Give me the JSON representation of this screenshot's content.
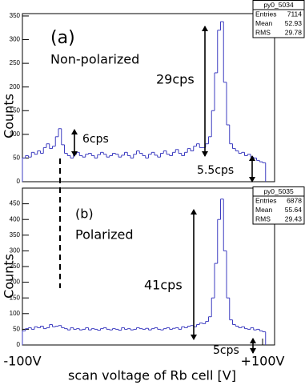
{
  "chart_data": [
    {
      "type": "histogram",
      "ylabel": "Counts",
      "color": "#3d3dc0",
      "annotations": [
        "(a)",
        "Non-polarized",
        "29cps",
        "6cps",
        "5.5cps"
      ],
      "stats": {
        "title": "py0_5034",
        "rows": [
          [
            "Entries",
            7114
          ],
          [
            "Mean",
            52.93
          ],
          [
            "RMS",
            29.78
          ]
        ]
      },
      "bins": [
        -100,
        -97.5,
        -95,
        -92.5,
        -90,
        -87.5,
        -85,
        -82.5,
        -80,
        -77.5,
        -75,
        -72.5,
        -70,
        -67.5,
        -65,
        -62.5,
        -60,
        -57.5,
        -55,
        -52.5,
        -50,
        -47.5,
        -45,
        -42.5,
        -40,
        -37.5,
        -35,
        -32.5,
        -30,
        -27.5,
        -25,
        -22.5,
        -20,
        -17.5,
        -15,
        -12.5,
        -10,
        -7.5,
        -5,
        -2.5,
        0,
        2.5,
        5,
        7.5,
        10,
        12.5,
        15,
        17.5,
        20,
        22.5,
        25,
        27.5,
        30,
        32.5,
        35,
        37.5,
        40,
        42.5,
        45,
        47.5,
        50,
        52.5,
        55,
        57.5,
        60,
        62.5,
        65,
        67.5,
        70,
        72.5,
        75,
        77.5,
        80,
        82.5,
        85,
        87.5,
        90,
        92.5,
        95,
        97.5,
        100,
        102.5
      ],
      "values": [
        50,
        55,
        52,
        62,
        58,
        65,
        60,
        72,
        80,
        70,
        75,
        95,
        112,
        78,
        60,
        55,
        50,
        58,
        62,
        55,
        52,
        58,
        60,
        55,
        50,
        57,
        62,
        58,
        52,
        55,
        60,
        58,
        52,
        56,
        62,
        55,
        50,
        58,
        65,
        60,
        55,
        50,
        58,
        62,
        56,
        52,
        60,
        65,
        58,
        55,
        62,
        68,
        60,
        55,
        62,
        70,
        65,
        75,
        80,
        72,
        72,
        80,
        95,
        150,
        230,
        320,
        338,
        210,
        120,
        80,
        70,
        65,
        60,
        62,
        55,
        58,
        52,
        50,
        45,
        42,
        40
      ],
      "xlim": [
        -100,
        110
      ],
      "ylim": [
        0,
        355
      ],
      "yticks": [
        0,
        50,
        100,
        150,
        200,
        250,
        300,
        350
      ]
    },
    {
      "type": "histogram",
      "ylabel": "Counts",
      "xlabel": "scan voltage of Rb cell [V]",
      "color": "#3d3dc0",
      "annotations": [
        "(b)",
        "Polarized",
        "41cps",
        "5cps"
      ],
      "stats": {
        "title": "py0_5035",
        "rows": [
          [
            "Entries",
            6878
          ],
          [
            "Mean",
            55.64
          ],
          [
            "RMS",
            29.43
          ]
        ]
      },
      "bins": [
        -100,
        -97.5,
        -95,
        -92.5,
        -90,
        -87.5,
        -85,
        -82.5,
        -80,
        -77.5,
        -75,
        -72.5,
        -70,
        -67.5,
        -65,
        -62.5,
        -60,
        -57.5,
        -55,
        -52.5,
        -50,
        -47.5,
        -45,
        -42.5,
        -40,
        -37.5,
        -35,
        -32.5,
        -30,
        -27.5,
        -25,
        -22.5,
        -20,
        -17.5,
        -15,
        -12.5,
        -10,
        -7.5,
        -5,
        -2.5,
        0,
        2.5,
        5,
        7.5,
        10,
        12.5,
        15,
        17.5,
        20,
        22.5,
        25,
        27.5,
        30,
        32.5,
        35,
        37.5,
        40,
        42.5,
        45,
        47.5,
        50,
        52.5,
        55,
        57.5,
        60,
        62.5,
        65,
        67.5,
        70,
        72.5,
        75,
        77.5,
        80,
        82.5,
        85,
        87.5,
        90,
        92.5,
        95,
        97.5,
        100,
        102.5
      ],
      "values": [
        45,
        52,
        55,
        50,
        58,
        55,
        60,
        52,
        55,
        65,
        58,
        60,
        62,
        55,
        52,
        48,
        55,
        50,
        52,
        48,
        50,
        55,
        48,
        52,
        50,
        47,
        52,
        55,
        50,
        48,
        52,
        50,
        47,
        55,
        50,
        52,
        48,
        50,
        55,
        52,
        50,
        53,
        48,
        52,
        55,
        50,
        48,
        52,
        55,
        50,
        53,
        55,
        50,
        58,
        55,
        60,
        62,
        58,
        65,
        70,
        68,
        75,
        90,
        150,
        260,
        400,
        465,
        300,
        150,
        80,
        65,
        60,
        55,
        58,
        52,
        50,
        55,
        48,
        50,
        45,
        42
      ],
      "xlim": [
        -100,
        110
      ],
      "ylim": [
        0,
        500
      ],
      "yticks": [
        0,
        50,
        100,
        150,
        200,
        250,
        300,
        350,
        400,
        450
      ],
      "xticks": [
        {
          "value": -100,
          "label": "-100V"
        },
        {
          "value": 100,
          "label": "+100V"
        }
      ]
    }
  ]
}
